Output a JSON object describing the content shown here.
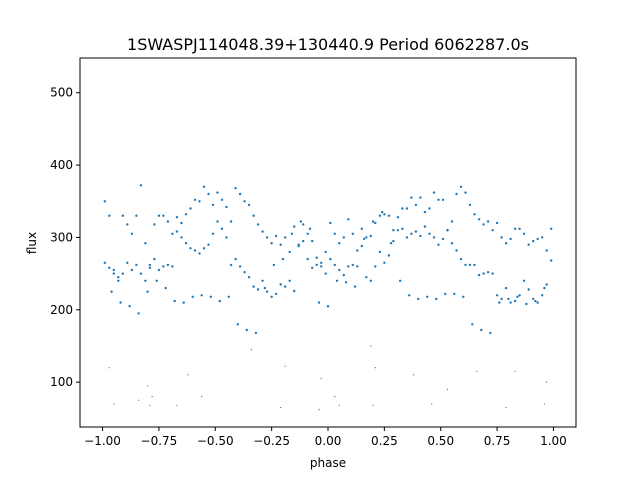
{
  "chart_data": {
    "type": "scatter",
    "title": "1SWASPJ114048.39+130440.9 Period 6062287.0s",
    "xlabel": "phase",
    "ylabel": "flux",
    "xlim": [
      -1.1,
      1.1
    ],
    "ylim": [
      38,
      548
    ],
    "xticks": [
      -1.0,
      -0.75,
      -0.5,
      -0.25,
      0.0,
      0.25,
      0.5,
      0.75,
      1.0
    ],
    "xtick_labels": [
      "−1.00",
      "−0.75",
      "−0.50",
      "−0.25",
      "0.00",
      "0.25",
      "0.50",
      "0.75",
      "1.00"
    ],
    "yticks": [
      100,
      200,
      300,
      400,
      500
    ],
    "ytick_labels": [
      "100",
      "200",
      "300",
      "400",
      "500"
    ],
    "grid": false,
    "marker_color": "#1f77b4",
    "series": [
      {
        "x": [
          -0.99,
          -0.97,
          -0.95,
          -0.93,
          -0.91,
          -0.89,
          -0.87,
          -0.85,
          -0.83,
          -0.81,
          -0.79,
          -0.77,
          -0.75,
          -0.73,
          -0.71,
          -0.69,
          -0.67,
          -0.65,
          -0.63,
          -0.61,
          -0.59,
          -0.57,
          -0.55,
          -0.53,
          -0.51,
          -0.49,
          -0.47,
          -0.45,
          -0.43,
          -0.41,
          -0.39,
          -0.37,
          -0.35,
          -0.33,
          -0.31,
          -0.29,
          -0.27,
          -0.25,
          -0.23,
          -0.21,
          -0.19,
          -0.17,
          -0.15,
          -0.13,
          -0.11,
          -0.09,
          -0.07,
          -0.05,
          -0.03,
          -0.01,
          0.01,
          0.03,
          0.05,
          0.07,
          0.09,
          0.11,
          0.13,
          0.15,
          0.17,
          0.19,
          0.21,
          0.23,
          0.25,
          0.27,
          0.29,
          0.31,
          0.33,
          0.35,
          0.37,
          0.39,
          0.41,
          0.43,
          0.45,
          0.47,
          0.49,
          0.51,
          0.53,
          0.55,
          0.57,
          0.59,
          0.61,
          0.63,
          0.65,
          0.67,
          0.69,
          0.71,
          0.73,
          0.75,
          0.77,
          0.79,
          0.81,
          0.83,
          0.85,
          0.87,
          0.89,
          0.91,
          0.93,
          0.95,
          0.97,
          0.99,
          -0.99,
          -0.97,
          -0.95,
          -0.93,
          -0.91,
          -0.89,
          -0.87,
          -0.85,
          -0.83,
          -0.81,
          -0.79,
          -0.77,
          -0.75,
          -0.73,
          -0.71,
          -0.69,
          -0.67,
          -0.65,
          -0.63,
          -0.61,
          -0.59,
          -0.57,
          -0.55,
          -0.53,
          -0.51,
          -0.49,
          -0.47,
          -0.45,
          -0.43,
          -0.41,
          -0.39,
          -0.37,
          -0.35,
          -0.33,
          -0.31,
          -0.29,
          -0.27,
          -0.25,
          -0.23,
          -0.21,
          -0.19,
          -0.17,
          -0.15,
          -0.13,
          -0.11,
          -0.09,
          -0.07,
          -0.05,
          -0.03,
          -0.01,
          0.01,
          0.03,
          0.05,
          0.07,
          0.09,
          0.11,
          0.13,
          0.15,
          0.17,
          0.19,
          0.21,
          0.23,
          0.25,
          0.27,
          0.29,
          0.31,
          0.33,
          0.35,
          0.37,
          0.39,
          0.41,
          0.43,
          0.45,
          0.47,
          0.49,
          0.51,
          0.53,
          0.55,
          0.57,
          0.59,
          0.61,
          0.63,
          0.65,
          0.67,
          0.69,
          0.71,
          0.73,
          0.75,
          0.77,
          0.79,
          0.81,
          0.83,
          0.85,
          0.87,
          0.89,
          0.91,
          0.93,
          0.95,
          0.97,
          0.99,
          -0.96,
          -0.92,
          -0.88,
          -0.84,
          -0.8,
          -0.76,
          -0.72,
          -0.68,
          -0.64,
          -0.6,
          -0.56,
          -0.52,
          -0.48,
          -0.44,
          -0.4,
          -0.36,
          -0.32,
          -0.28,
          -0.24,
          -0.2,
          -0.16,
          -0.12,
          -0.08,
          -0.04,
          0.0,
          0.04,
          0.08,
          0.12,
          0.16,
          0.2,
          0.24,
          0.28,
          0.32,
          0.36,
          0.4,
          0.44,
          0.48,
          0.52,
          0.56,
          0.6,
          0.64,
          0.68,
          0.72,
          0.76,
          0.8,
          0.84,
          0.88,
          0.92,
          0.96,
          -0.97,
          -0.8,
          -0.78,
          -0.62,
          -0.34,
          -0.19,
          -0.03,
          0.03,
          0.19,
          0.21,
          0.38,
          0.53,
          0.66,
          0.83,
          0.97,
          -0.95,
          -0.84,
          -0.79,
          -0.67,
          -0.56,
          -0.21,
          -0.04,
          0.05,
          0.2,
          0.46,
          0.79,
          0.96
        ],
        "y": [
          350,
          330,
          255,
          245,
          250,
          265,
          255,
          330,
          372,
          292,
          258,
          318,
          330,
          330,
          322,
          305,
          328,
          320,
          332,
          340,
          352,
          350,
          370,
          360,
          345,
          362,
          352,
          342,
          322,
          368,
          360,
          350,
          345,
          330,
          318,
          308,
          300,
          292,
          302,
          290,
          300,
          280,
          315,
          290,
          318,
          305,
          295,
          272,
          260,
          250,
          320,
          305,
          292,
          300,
          325,
          305,
          282,
          312,
          300,
          302,
          320,
          330,
          332,
          330,
          310,
          328,
          340,
          340,
          355,
          345,
          355,
          335,
          340,
          362,
          352,
          352,
          310,
          322,
          360,
          370,
          362,
          345,
          332,
          325,
          318,
          322,
          310,
          320,
          300,
          292,
          298,
          312,
          312,
          305,
          290,
          295,
          298,
          300,
          282,
          312,
          265,
          258,
          250,
          240,
          330,
          318,
          305,
          262,
          250,
          240,
          262,
          270,
          255,
          260,
          262,
          260,
          308,
          300,
          292,
          285,
          282,
          278,
          285,
          290,
          305,
          322,
          312,
          300,
          262,
          270,
          260,
          252,
          245,
          232,
          228,
          240,
          225,
          218,
          222,
          235,
          232,
          240,
          226,
          288,
          295,
          270,
          258,
          262,
          265,
          280,
          270,
          262,
          255,
          248,
          260,
          262,
          260,
          288,
          245,
          240,
          260,
          280,
          265,
          275,
          295,
          310,
          312,
          300,
          305,
          308,
          302,
          315,
          305,
          300,
          290,
          298,
          310,
          292,
          282,
          270,
          262,
          262,
          262,
          248,
          250,
          252,
          250,
          220,
          215,
          230,
          210,
          212,
          220,
          240,
          228,
          215,
          210,
          220,
          235,
          268,
          225,
          210,
          205,
          195,
          225,
          240,
          230,
          212,
          210,
          218,
          220,
          218,
          212,
          218,
          180,
          172,
          168,
          230,
          262,
          270,
          305,
          322,
          312,
          210,
          205,
          240,
          238,
          232,
          298,
          322,
          335,
          292,
          240,
          220,
          215,
          218,
          215,
          222,
          222,
          218,
          180,
          172,
          168,
          210,
          215,
          218,
          208,
          212,
          230,
          120,
          95,
          80,
          110,
          145,
          122,
          105,
          80,
          150,
          120,
          110,
          90,
          115,
          115,
          100,
          70,
          75,
          68,
          68,
          80,
          65,
          62,
          68,
          68,
          70,
          65,
          70
        ],
        "sizes": [
          2,
          2,
          2,
          2,
          2,
          2,
          2,
          2,
          2,
          2,
          2,
          2,
          2,
          2,
          2,
          2,
          2,
          2,
          2,
          2,
          2,
          2,
          2,
          2,
          2,
          2,
          2,
          2,
          2,
          2,
          2,
          2,
          2,
          2,
          2,
          2,
          2,
          2,
          2,
          2,
          2,
          2,
          2,
          2,
          2,
          2,
          2,
          2,
          2,
          2,
          2,
          2,
          2,
          2,
          2,
          2,
          2,
          2,
          2,
          2,
          2,
          2,
          2,
          2,
          2,
          2,
          2,
          2,
          2,
          2,
          2,
          2,
          2,
          2,
          2,
          2,
          2,
          2,
          2,
          2,
          2,
          2,
          2,
          2,
          2,
          2,
          2,
          2,
          2,
          2,
          2,
          2,
          2,
          2,
          2,
          2,
          2,
          2,
          2,
          2,
          2,
          2,
          2,
          2,
          2,
          2,
          2,
          2,
          2,
          2,
          2,
          2,
          2,
          2,
          2,
          2,
          2,
          2,
          2,
          2,
          2,
          2,
          2,
          2,
          2,
          2,
          2,
          2,
          2,
          2,
          2,
          2,
          2,
          2,
          2,
          2,
          2,
          2,
          2,
          2,
          2,
          2,
          2,
          2,
          2,
          2,
          2,
          2,
          2,
          2,
          2,
          2,
          2,
          2,
          2,
          2,
          2,
          2,
          2,
          2,
          2,
          2,
          2,
          2,
          2,
          2,
          2,
          2,
          2,
          2,
          2,
          2,
          2,
          2,
          2,
          2,
          2,
          2,
          2,
          2,
          2,
          2,
          2,
          2,
          2,
          2,
          2,
          2,
          2,
          2,
          2,
          2,
          2,
          2,
          2,
          2,
          2,
          2,
          2,
          2,
          2,
          2,
          2,
          2,
          2,
          2,
          2,
          2,
          2,
          2,
          2,
          2,
          2,
          2,
          2,
          2,
          2,
          2,
          2,
          2,
          2,
          2,
          2,
          2,
          2,
          2,
          2,
          2,
          2,
          2,
          2,
          2,
          2,
          2,
          2,
          2,
          2,
          2,
          2,
          2,
          2,
          2,
          2,
          2,
          2,
          2,
          2,
          2,
          2,
          1,
          1,
          1,
          1,
          1,
          1,
          1,
          1,
          1,
          1,
          1,
          1,
          1,
          1,
          1,
          1,
          1,
          1,
          1,
          1,
          1,
          1,
          1,
          1,
          1,
          1,
          1
        ]
      }
    ]
  }
}
